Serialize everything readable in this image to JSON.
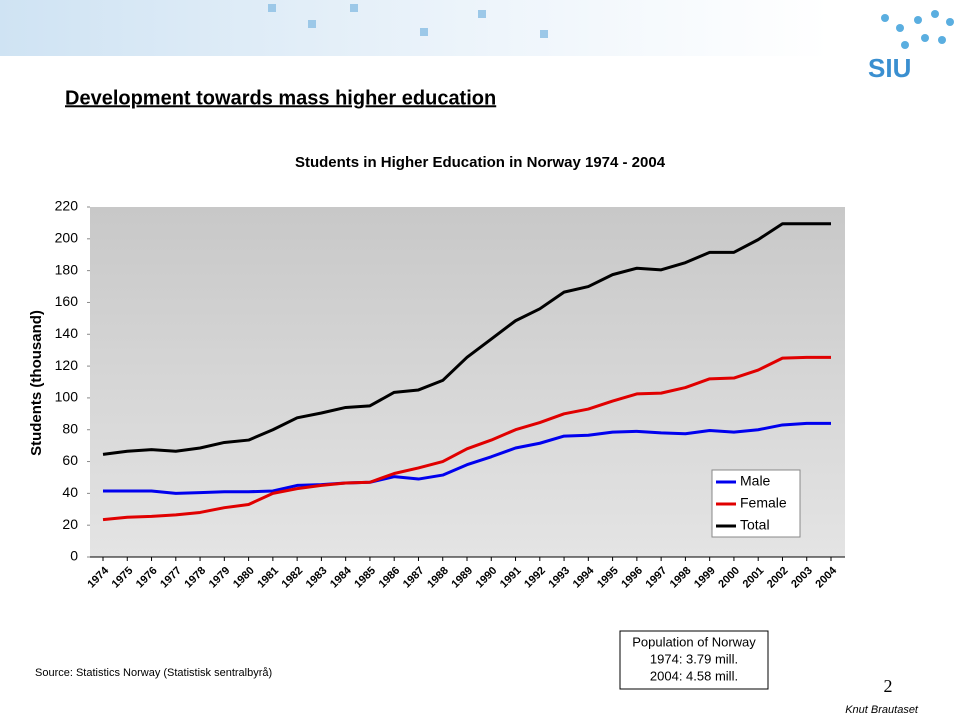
{
  "slide": {
    "logo": "SIU",
    "title": "Development towards mass higher education",
    "source": "Source: Statistics Norway (Statistisk sentralbyrå)",
    "population_box": [
      "Population of Norway",
      "1974: 3.79 mill.",
      "2004: 4.58 mill."
    ],
    "page_number": "2",
    "author": "Knut Brautaset"
  },
  "chart_data": {
    "type": "line",
    "title": "Students in Higher Education in Norway 1974 - 2004",
    "y_label": "Students (thousand)",
    "categories": [
      "1974",
      "1975",
      "1976",
      "1977",
      "1978",
      "1979",
      "1980",
      "1981",
      "1982",
      "1983",
      "1984",
      "1985",
      "1986",
      "1987",
      "1988",
      "1989",
      "1990",
      "1991",
      "1992",
      "1993",
      "1994",
      "1995",
      "1996",
      "1997",
      "1998",
      "1999",
      "2000",
      "2001",
      "2002",
      "2003",
      "2004"
    ],
    "series": [
      {
        "name": "Male",
        "color": "#0000ee",
        "values": [
          41.5,
          41.5,
          41.5,
          40,
          40.5,
          41,
          41,
          41.5,
          45,
          45.5,
          46.5,
          47,
          50.5,
          49,
          51.5,
          58,
          63,
          68.5,
          71.5,
          76,
          76.5,
          78.5,
          79,
          78,
          77.5,
          79.5,
          78.5,
          80,
          83,
          84,
          84
        ]
      },
      {
        "name": "Female",
        "color": "#e00000",
        "values": [
          23.5,
          25,
          25.5,
          26.5,
          28,
          31,
          33,
          40,
          43,
          45,
          46.5,
          47,
          52.5,
          56,
          60,
          68,
          73.5,
          80,
          84.5,
          90,
          93,
          98,
          102.5,
          103,
          106.5,
          112,
          112.5,
          117.5,
          125,
          125.5,
          125.5
        ]
      },
      {
        "name": "Total",
        "color": "#000000",
        "values": [
          64.5,
          66.5,
          67.5,
          66.5,
          68.5,
          72,
          73.5,
          80,
          87.5,
          90.5,
          94,
          95,
          103.5,
          105,
          111,
          125.5,
          137,
          148.5,
          156,
          166.5,
          170,
          177.5,
          181.5,
          180.5,
          185,
          191.5,
          191.5,
          199.5,
          209.5,
          209.5,
          209.5
        ]
      }
    ],
    "ylim": [
      0,
      220
    ],
    "yticks": [
      0,
      20,
      40,
      60,
      80,
      100,
      120,
      140,
      160,
      180,
      200,
      220
    ],
    "legend": "lower right"
  }
}
